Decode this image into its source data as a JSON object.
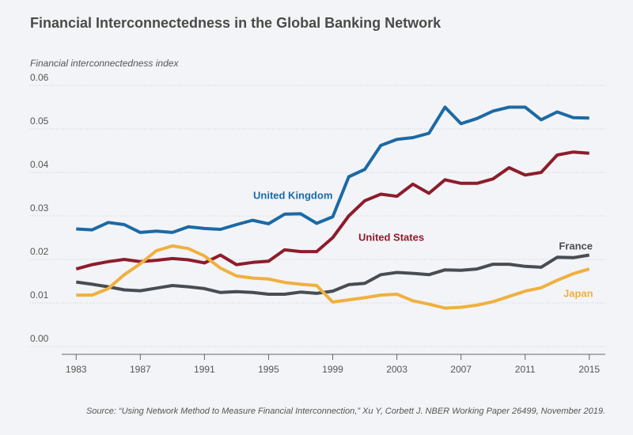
{
  "chart_data": {
    "type": "line",
    "title": "Financial Interconnectedness in the Global Banking Network",
    "y_label": "Financial interconnectedness index",
    "source": "Source: “Using Network Method to Measure Financial Interconnection,” Xu Y, Corbett J. NBER Working Paper 26499, November 2019.",
    "x": [
      1983,
      1984,
      1985,
      1986,
      1987,
      1988,
      1989,
      1990,
      1991,
      1992,
      1993,
      1994,
      1995,
      1996,
      1997,
      1998,
      1999,
      2000,
      2001,
      2002,
      2003,
      2004,
      2005,
      2006,
      2007,
      2008,
      2009,
      2010,
      2011,
      2012,
      2013,
      2014,
      2015
    ],
    "xlim": [
      1982,
      2016
    ],
    "xticks": [
      1983,
      1987,
      1991,
      1995,
      1999,
      2003,
      2007,
      2011,
      2015
    ],
    "ylim": [
      0,
      0.06
    ],
    "yticks": [
      {
        "value": 0,
        "label": "0.00"
      },
      0.01,
      0.02,
      0.03,
      0.04,
      0.05,
      0.06
    ],
    "grid": true,
    "series": [
      {
        "name": "United Kingdom",
        "color": "#1b6aa5",
        "values": [
          0.027,
          0.0268,
          0.0285,
          0.028,
          0.0262,
          0.0265,
          0.0262,
          0.0275,
          0.0271,
          0.0269,
          0.028,
          0.029,
          0.0282,
          0.0304,
          0.0305,
          0.0283,
          0.0298,
          0.039,
          0.0407,
          0.0462,
          0.0476,
          0.048,
          0.049,
          0.055,
          0.0512,
          0.0524,
          0.0541,
          0.055,
          0.055,
          0.0521,
          0.0539,
          0.0526,
          0.0525
        ]
      },
      {
        "name": "United States",
        "color": "#8c1d2c",
        "values": [
          0.0178,
          0.0188,
          0.0195,
          0.02,
          0.0195,
          0.0198,
          0.0202,
          0.0199,
          0.0192,
          0.021,
          0.0188,
          0.0193,
          0.0196,
          0.0222,
          0.0218,
          0.0218,
          0.025,
          0.03,
          0.0335,
          0.035,
          0.0345,
          0.0373,
          0.0352,
          0.0383,
          0.0375,
          0.0375,
          0.0385,
          0.0411,
          0.0394,
          0.04,
          0.044,
          0.0447,
          0.0444
        ]
      },
      {
        "name": "France",
        "color": "#484d53",
        "values": [
          0.0148,
          0.0143,
          0.0137,
          0.013,
          0.0128,
          0.0134,
          0.014,
          0.0137,
          0.0133,
          0.0124,
          0.0126,
          0.0124,
          0.012,
          0.012,
          0.0125,
          0.0122,
          0.0127,
          0.0142,
          0.0145,
          0.0165,
          0.017,
          0.0168,
          0.0165,
          0.0176,
          0.0175,
          0.0178,
          0.0189,
          0.0189,
          0.0184,
          0.0182,
          0.0205,
          0.0204,
          0.021
        ]
      },
      {
        "name": "Japan",
        "color": "#f0b03f",
        "values": [
          0.0118,
          0.0118,
          0.0133,
          0.0165,
          0.019,
          0.022,
          0.0231,
          0.0225,
          0.0208,
          0.018,
          0.0162,
          0.0157,
          0.0155,
          0.0147,
          0.0143,
          0.014,
          0.0102,
          0.0107,
          0.0112,
          0.0118,
          0.012,
          0.0105,
          0.0097,
          0.0088,
          0.009,
          0.0095,
          0.0103,
          0.0115,
          0.0127,
          0.0135,
          0.0152,
          0.0167,
          0.0178
        ]
      }
    ]
  }
}
